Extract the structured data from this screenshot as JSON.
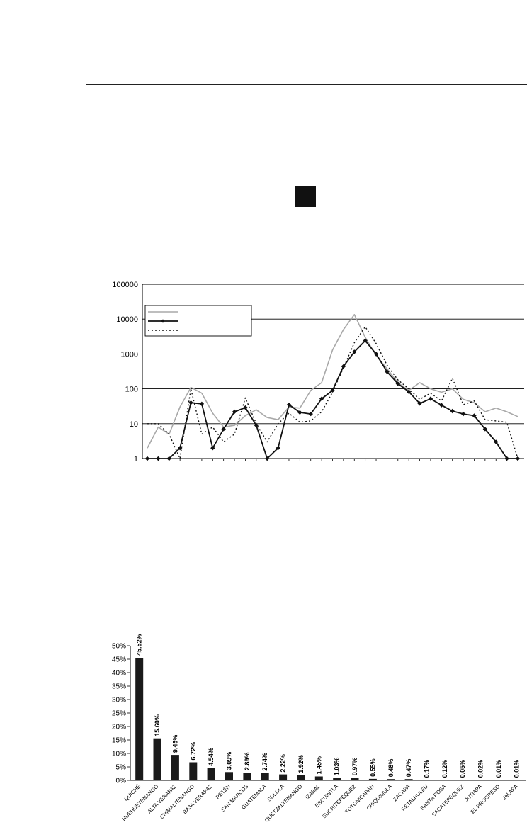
{
  "chart_data": [
    {
      "type": "line",
      "scale": "log",
      "ylim": [
        1,
        100000
      ],
      "yticks": [
        "100000",
        "10000",
        "1000",
        "100",
        "10",
        "1"
      ],
      "grid": true,
      "legend_placement": "top-left",
      "series": [
        {
          "style": "solid-gray",
          "color": "#a8a8a8",
          "values": [
            2,
            8,
            5,
            30,
            110,
            75,
            20,
            8,
            9,
            17,
            25,
            15,
            13,
            30,
            28,
            90,
            150,
            1300,
            5000,
            13500,
            3000,
            900,
            380,
            150,
            90,
            150,
            100,
            80,
            100,
            50,
            40,
            22,
            28,
            22,
            16
          ]
        },
        {
          "style": "solid-black-diamond",
          "color": "#111111",
          "values": [
            1,
            1,
            1,
            2,
            40,
            37,
            2,
            7,
            22,
            29,
            9,
            1,
            2,
            35,
            21,
            19,
            52,
            90,
            440,
            1150,
            2400,
            1000,
            310,
            140,
            82,
            38,
            52,
            34,
            23,
            19,
            17,
            7,
            3,
            1,
            1
          ]
        },
        {
          "style": "dotted-black",
          "color": "#111111",
          "values": [
            10,
            10,
            5,
            1,
            100,
            5,
            8,
            3,
            5,
            55,
            10,
            3,
            10,
            20,
            11,
            12,
            22,
            80,
            400,
            2100,
            6000,
            2000,
            480,
            180,
            100,
            50,
            75,
            45,
            200,
            35,
            45,
            13,
            12,
            11,
            1
          ]
        }
      ]
    },
    {
      "type": "bar",
      "ylim": [
        0,
        50
      ],
      "yticks": [
        "0%",
        "5%",
        "10%",
        "15%",
        "20%",
        "25%",
        "30%",
        "35%",
        "40%",
        "45%",
        "50%"
      ],
      "categories": [
        "QUICHÉ",
        "HUEHUETENANGO",
        "ALTA VERAPAZ",
        "CHIMALTENANGO",
        "BAJA VERAPAZ",
        "PETÉN",
        "SAN MARCOS",
        "GUATEMALA",
        "SOLOLÁ",
        "QUETZALTENANGO",
        "IZABAL",
        "ESCUINTLA",
        "SUCHITEPÉQUEZ",
        "TOTONICAPÁN",
        "CHIQUIMULA",
        "ZACAPA",
        "RETALHULEU",
        "SANTA ROSA",
        "SACATEPÉQUEZ",
        "JUTIAPA",
        "EL PROGRESO",
        "JALAPA"
      ],
      "values": [
        45.52,
        15.6,
        9.45,
        6.72,
        4.54,
        3.09,
        2.89,
        2.74,
        2.22,
        1.92,
        1.45,
        1.03,
        0.97,
        0.55,
        0.48,
        0.47,
        0.17,
        0.12,
        0.05,
        0.02,
        0.01,
        0.01
      ],
      "data_labels": [
        "45.52%",
        "15.60%",
        "9.45%",
        "6.72%",
        "4.54%",
        "3.09%",
        "2.89%",
        "2.74%",
        "2.22%",
        "1.92%",
        "1.45%",
        "1.03%",
        "0.97%",
        "0.55%",
        "0.48%",
        "0.47%",
        "0.17%",
        "0.12%",
        "0.05%",
        "0.02%",
        "0.01%",
        "0.01%"
      ],
      "bar_color": "#1a1a1a",
      "grid": false
    }
  ]
}
